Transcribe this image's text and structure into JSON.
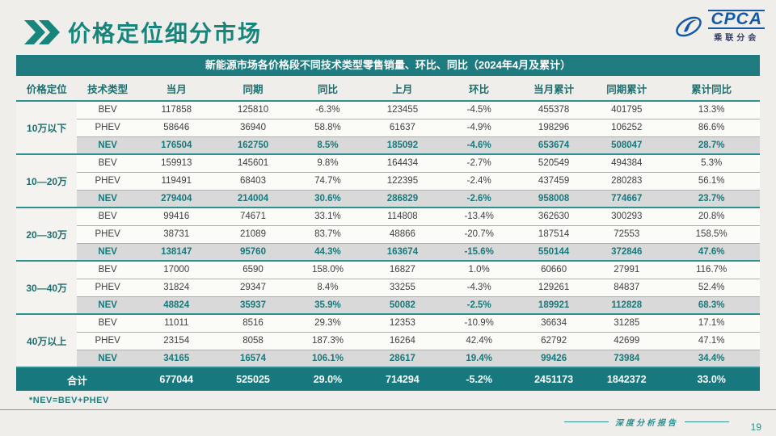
{
  "page": {
    "title": "价格定位细分市场",
    "footnote": "*NEV=BEV+PHEV",
    "footer_label": "深度分析报告",
    "page_number": "19"
  },
  "logo": {
    "brand": "CPCA",
    "subtitle": "乘联分会",
    "icon": "cpca-swoosh-icon"
  },
  "colors": {
    "teal_band": "#1e7b80",
    "teal_title": "#17857c",
    "teal_text": "#17797c",
    "nev_row_bg": "#d9d9d9",
    "row_bg": "#fbfbf8",
    "page_bg": "#efeeea",
    "total_row_bg": "#17787e",
    "logo_blue": "#1459a8"
  },
  "table": {
    "caption": "新能源市场各价格段不同技术类型零售销量、环比、同比（2024年4月及累计）",
    "columns": [
      "价格定位",
      "技术类型",
      "当月",
      "同期",
      "同比",
      "上月",
      "环比",
      "当月累计",
      "同期累计",
      "累计同比"
    ],
    "groups": [
      {
        "label": "10万以下",
        "rows": [
          {
            "type": "BEV",
            "values": [
              "117858",
              "125810",
              "-6.3%",
              "123455",
              "-4.5%",
              "455378",
              "401795",
              "13.3%"
            ]
          },
          {
            "type": "PHEV",
            "values": [
              "58646",
              "36940",
              "58.8%",
              "61637",
              "-4.9%",
              "198296",
              "106252",
              "86.6%"
            ]
          },
          {
            "type": "NEV",
            "values": [
              "176504",
              "162750",
              "8.5%",
              "185092",
              "-4.6%",
              "653674",
              "508047",
              "28.7%"
            ]
          }
        ]
      },
      {
        "label": "10—20万",
        "rows": [
          {
            "type": "BEV",
            "values": [
              "159913",
              "145601",
              "9.8%",
              "164434",
              "-2.7%",
              "520549",
              "494384",
              "5.3%"
            ]
          },
          {
            "type": "PHEV",
            "values": [
              "119491",
              "68403",
              "74.7%",
              "122395",
              "-2.4%",
              "437459",
              "280283",
              "56.1%"
            ]
          },
          {
            "type": "NEV",
            "values": [
              "279404",
              "214004",
              "30.6%",
              "286829",
              "-2.6%",
              "958008",
              "774667",
              "23.7%"
            ]
          }
        ]
      },
      {
        "label": "20—30万",
        "rows": [
          {
            "type": "BEV",
            "values": [
              "99416",
              "74671",
              "33.1%",
              "114808",
              "-13.4%",
              "362630",
              "300293",
              "20.8%"
            ]
          },
          {
            "type": "PHEV",
            "values": [
              "38731",
              "21089",
              "83.7%",
              "48866",
              "-20.7%",
              "187514",
              "72553",
              "158.5%"
            ]
          },
          {
            "type": "NEV",
            "values": [
              "138147",
              "95760",
              "44.3%",
              "163674",
              "-15.6%",
              "550144",
              "372846",
              "47.6%"
            ]
          }
        ]
      },
      {
        "label": "30—40万",
        "rows": [
          {
            "type": "BEV",
            "values": [
              "17000",
              "6590",
              "158.0%",
              "16827",
              "1.0%",
              "60660",
              "27991",
              "116.7%"
            ]
          },
          {
            "type": "PHEV",
            "values": [
              "31824",
              "29347",
              "8.4%",
              "33255",
              "-4.3%",
              "129261",
              "84837",
              "52.4%"
            ]
          },
          {
            "type": "NEV",
            "values": [
              "48824",
              "35937",
              "35.9%",
              "50082",
              "-2.5%",
              "189921",
              "112828",
              "68.3%"
            ]
          }
        ]
      },
      {
        "label": "40万以上",
        "rows": [
          {
            "type": "BEV",
            "values": [
              "11011",
              "8516",
              "29.3%",
              "12353",
              "-10.9%",
              "36634",
              "31285",
              "17.1%"
            ]
          },
          {
            "type": "PHEV",
            "values": [
              "23154",
              "8058",
              "187.3%",
              "16264",
              "42.4%",
              "62792",
              "42699",
              "47.1%"
            ]
          },
          {
            "type": "NEV",
            "values": [
              "34165",
              "16574",
              "106.1%",
              "28617",
              "19.4%",
              "99426",
              "73984",
              "34.4%"
            ]
          }
        ]
      }
    ],
    "total": {
      "label": "合计",
      "values": [
        "677044",
        "525025",
        "29.0%",
        "714294",
        "-5.2%",
        "2451173",
        "1842372",
        "33.0%"
      ]
    }
  }
}
